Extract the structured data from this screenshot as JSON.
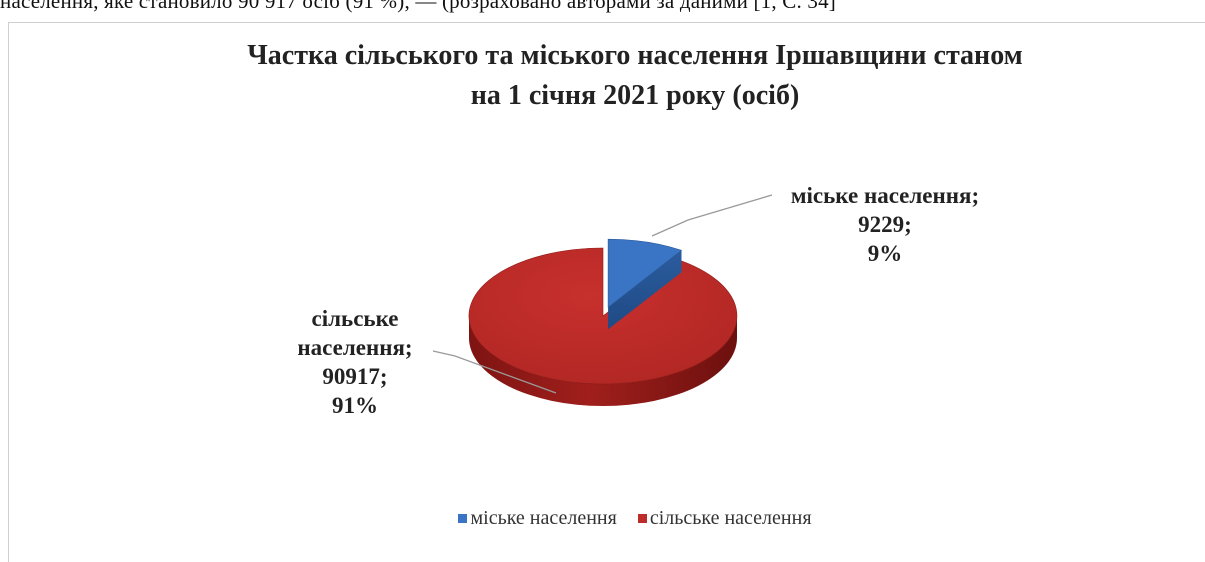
{
  "page": {
    "top_text": "населення, яке становило 90 917 осіб (91 %), — (розраховано авторами за даними [1, С. 34]"
  },
  "chart_data": {
    "type": "pie",
    "title_lines": [
      "Частка сільського та міського населення Іршавщини станом",
      "на 1 січня 2021 року (осіб)"
    ],
    "categories": [
      "міське населення",
      "сільське населення"
    ],
    "values": [
      9229,
      90917
    ],
    "percents": [
      "9%",
      "91%"
    ],
    "label_values": [
      "9229;",
      "90917;"
    ],
    "label_names": [
      [
        "міське населення;"
      ],
      [
        "сільське",
        "населення;"
      ]
    ],
    "colors": [
      "#3a74c4",
      "#bd2c2a"
    ],
    "legend": [
      "міське населення",
      "сільське населення"
    ],
    "legend_placement": "bottom",
    "exploded": true,
    "three_d": true
  }
}
